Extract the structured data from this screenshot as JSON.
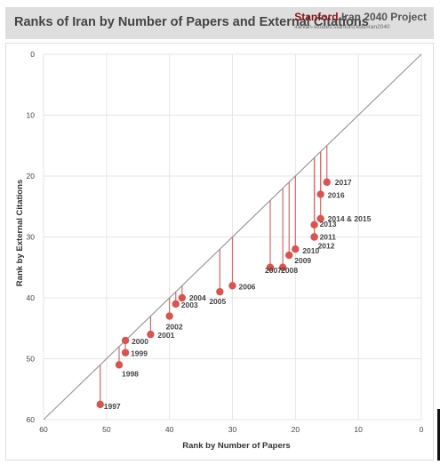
{
  "header": {
    "title": "Ranks of Iran by Number of Papers and External Citations",
    "brand_name": "Stanford",
    "brand_project": "Iran 2040 Project",
    "brand_url": "iranian-studies.stanford.edu/iran2040"
  },
  "colors": {
    "point": "#d9534f",
    "stem": "#e06666",
    "diagonal": "#999999",
    "grid": "#e6e6e6",
    "brand": "#8c1515"
  },
  "chart_data": {
    "type": "scatter",
    "title": "Ranks of Iran by Number of Papers and External Citations",
    "xlabel": "Rank by Number of Papers",
    "ylabel": "Rank by External Citations",
    "xlim": [
      60,
      0
    ],
    "ylim": [
      0,
      60
    ],
    "x_ticks": [
      "60",
      "50",
      "40",
      "30",
      "20",
      "10",
      "0"
    ],
    "y_ticks": [
      "0",
      "10",
      "20",
      "30",
      "40",
      "50",
      "60"
    ],
    "x_reversed": true,
    "y_reversed": true,
    "grid": true,
    "reference_line": "y = x",
    "stems": "vertical line from each point to the diagonal",
    "points": [
      {
        "label": "1997",
        "x": 51,
        "y": 57.5
      },
      {
        "label": "1998",
        "x": 48,
        "y": 51
      },
      {
        "label": "1999",
        "x": 47,
        "y": 49
      },
      {
        "label": "2000",
        "x": 47,
        "y": 47
      },
      {
        "label": "2001",
        "x": 43,
        "y": 46
      },
      {
        "label": "2002",
        "x": 40,
        "y": 43
      },
      {
        "label": "2003",
        "x": 39,
        "y": 41
      },
      {
        "label": "2004",
        "x": 38,
        "y": 40
      },
      {
        "label": "2005",
        "x": 32,
        "y": 39
      },
      {
        "label": "2006",
        "x": 30,
        "y": 38
      },
      {
        "label": "2007",
        "x": 24,
        "y": 35
      },
      {
        "label": "2008",
        "x": 22,
        "y": 35
      },
      {
        "label": "2009",
        "x": 21,
        "y": 33
      },
      {
        "label": "2010",
        "x": 20,
        "y": 32
      },
      {
        "label": "2011",
        "x": 17,
        "y": 30
      },
      {
        "label": "2012",
        "x": 17,
        "y": 30
      },
      {
        "label": "2013",
        "x": 17,
        "y": 28
      },
      {
        "label": "2014 & 2015",
        "x": 16,
        "y": 27
      },
      {
        "label": "2016",
        "x": 16,
        "y": 23
      },
      {
        "label": "2017",
        "x": 15,
        "y": 21
      }
    ]
  }
}
